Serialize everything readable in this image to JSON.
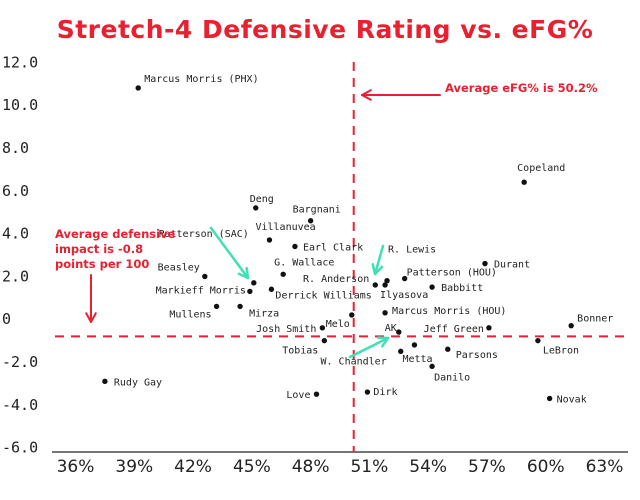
{
  "chart_data": {
    "type": "scatter",
    "title": "Stretch-4 Defensive Rating vs. eFG%",
    "xlabel": "",
    "ylabel": "",
    "xlim": [
      34.8,
      64.2
    ],
    "ylim": [
      -6.2,
      12.2
    ],
    "x_ticks": [
      36,
      39,
      42,
      45,
      48,
      51,
      54,
      57,
      60,
      63
    ],
    "x_tick_labels": [
      "36%",
      "39%",
      "42%",
      "45%",
      "48%",
      "51%",
      "54%",
      "57%",
      "60%",
      "63%"
    ],
    "y_ticks": [
      12,
      10,
      8,
      6,
      4,
      2,
      0,
      -2,
      -4,
      -6
    ],
    "y_tick_labels": [
      "12.0",
      "10.0",
      "8.0",
      "6.0",
      "4.0",
      "2.0",
      "0",
      "-2.0",
      "-4.0",
      "-6.0"
    ],
    "grid": false,
    "legend": "none",
    "colors": {
      "title": "#e8202f",
      "points": "#111111",
      "reference": "#e8202f",
      "annotation_arrow": "#3ee0b4"
    },
    "points": [
      {
        "label": "Marcus Morris (PHX)",
        "x": 39.2,
        "y": 10.8
      },
      {
        "label": "Deng",
        "x": 45.2,
        "y": 5.2
      },
      {
        "label": "Bargnani",
        "x": 48.0,
        "y": 4.6
      },
      {
        "label": "Villanuvea",
        "x": 45.9,
        "y": 3.7
      },
      {
        "label": "Patterson (SAC)",
        "x": 45.1,
        "y": 1.7
      },
      {
        "label": "Earl Clark",
        "x": 47.2,
        "y": 3.4
      },
      {
        "label": "Beasley",
        "x": 42.6,
        "y": 2.0
      },
      {
        "label": "G. Wallace",
        "x": 46.6,
        "y": 2.1
      },
      {
        "label": "Markieff Morris",
        "x": 44.9,
        "y": 1.3
      },
      {
        "label": "Derrick Williams",
        "x": 46.0,
        "y": 1.4
      },
      {
        "label": "Mullens",
        "x": 43.2,
        "y": 0.6
      },
      {
        "label": "Mirza",
        "x": 44.4,
        "y": 0.6
      },
      {
        "label": "Josh Smith",
        "x": 48.6,
        "y": -0.4
      },
      {
        "label": "Melo",
        "x": 50.1,
        "y": 0.2
      },
      {
        "label": "Tobias",
        "x": 48.7,
        "y": -1.0
      },
      {
        "label": "R. Lewis",
        "x": 51.9,
        "y": 1.8
      },
      {
        "label": "R. Anderson",
        "x": 51.3,
        "y": 1.6
      },
      {
        "label": "Ilyasova",
        "x": 51.8,
        "y": 1.6
      },
      {
        "label": "Patterson (HOU)",
        "x": 52.8,
        "y": 1.9
      },
      {
        "label": "Babbitt",
        "x": 54.2,
        "y": 1.5
      },
      {
        "label": "Durant",
        "x": 56.9,
        "y": 2.6
      },
      {
        "label": "Copeland",
        "x": 58.9,
        "y": 6.4
      },
      {
        "label": "Marcus Morris (HOU)",
        "x": 51.8,
        "y": 0.3
      },
      {
        "label": "AK",
        "x": 52.5,
        "y": -0.6
      },
      {
        "label": "Jeff Green",
        "x": 57.1,
        "y": -0.4
      },
      {
        "label": "Bonner",
        "x": 61.3,
        "y": -0.3
      },
      {
        "label": "LeBron",
        "x": 59.6,
        "y": -1.0
      },
      {
        "label": "Metta",
        "x": 53.3,
        "y": -1.2
      },
      {
        "label": "W. Chandler",
        "x": 52.6,
        "y": -1.5
      },
      {
        "label": "Parsons",
        "x": 55.0,
        "y": -1.4
      },
      {
        "label": "Danilo",
        "x": 54.2,
        "y": -2.2
      },
      {
        "label": "Rudy Gay",
        "x": 37.5,
        "y": -2.9
      },
      {
        "label": "Love",
        "x": 48.3,
        "y": -3.5
      },
      {
        "label": "Dirk",
        "x": 50.9,
        "y": -3.4
      },
      {
        "label": "Novak",
        "x": 60.2,
        "y": -3.7
      }
    ],
    "reference_lines": [
      {
        "axis": "x",
        "value": 50.2,
        "style": "dashed"
      },
      {
        "axis": "y",
        "value": -0.8,
        "style": "dashed"
      }
    ],
    "annotations": [
      {
        "text": "Average eFG% is 50.2%"
      },
      {
        "lines": [
          "Average defensive",
          "impact is -0.8",
          "points per 100"
        ]
      }
    ]
  }
}
